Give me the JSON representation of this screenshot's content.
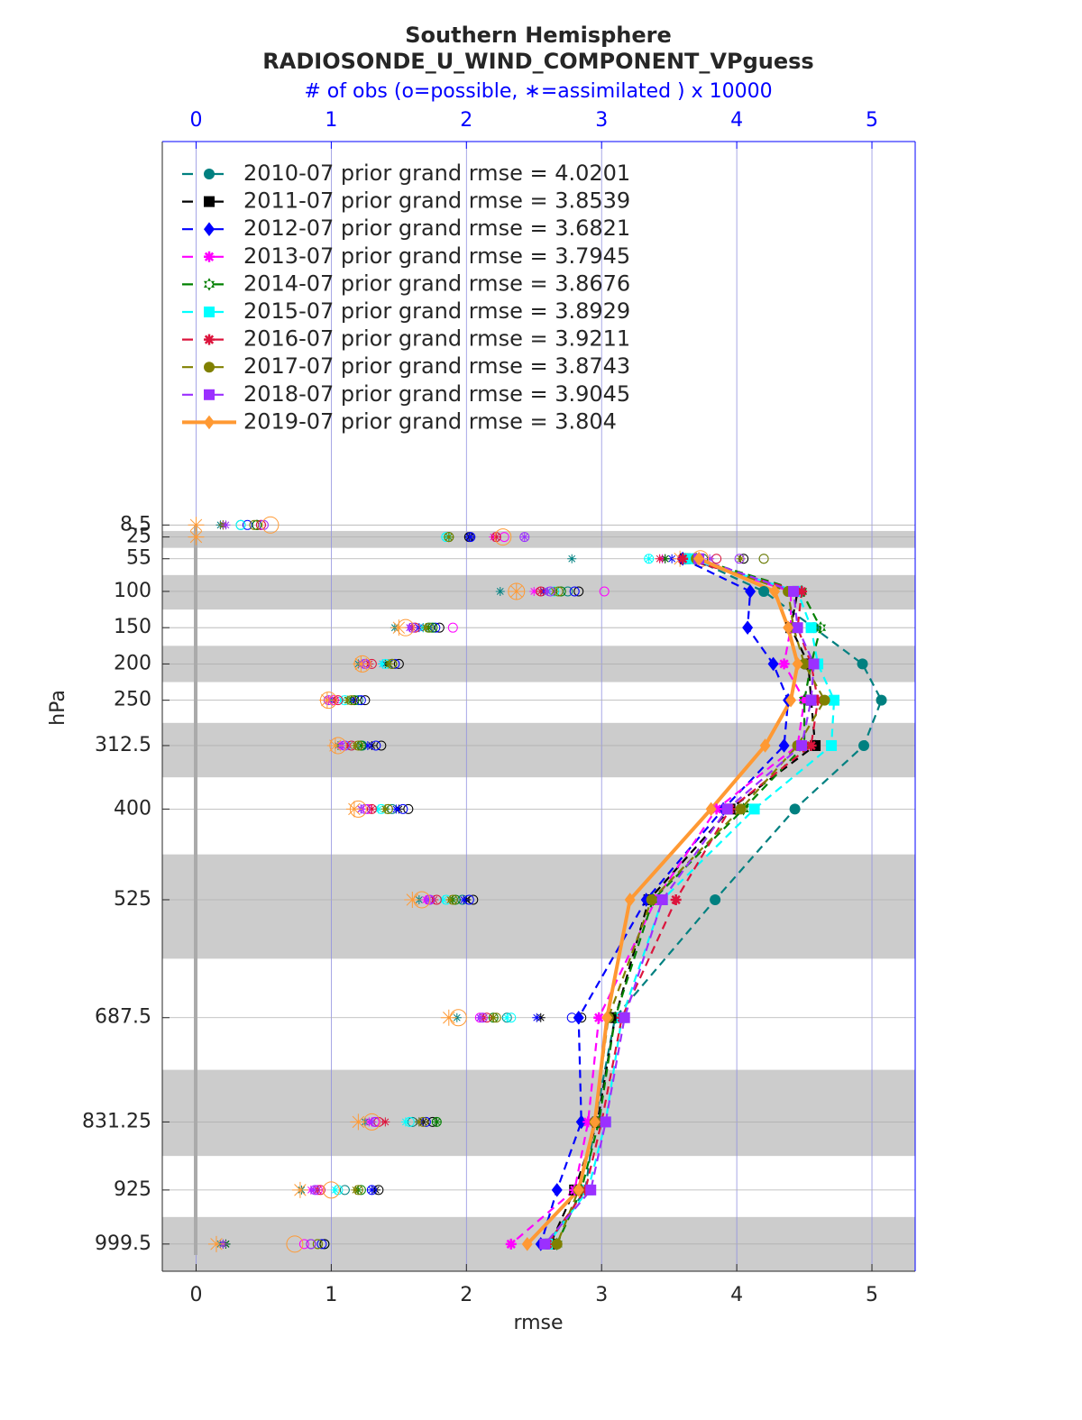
{
  "chart_data": {
    "type": "profile",
    "title": "Southern Hemisphere",
    "subtitle": "RADIOSONDE_U_WIND_COMPONENT_VPguess",
    "x2label": "# of obs (o=possible, ∗=assimilated ) x 10000",
    "xlabel": "rmse",
    "ylabel": "hPa",
    "xlim": [
      -0.25,
      5.32
    ],
    "xticks": [
      0,
      1,
      2,
      3,
      4,
      5
    ],
    "x2lim": [
      -0.25,
      5.32
    ],
    "x2ticks": [
      0,
      1,
      2,
      3,
      4,
      5
    ],
    "ylim": [
      -520,
      1037
    ],
    "y_reversed": true,
    "y": [
      8.5,
      25,
      55,
      100,
      150,
      200,
      250,
      312.5,
      400,
      525,
      687.5,
      831.25,
      925,
      999.5
    ],
    "yticks": [
      8.5,
      25,
      55,
      100,
      150,
      200,
      250,
      312.5,
      400,
      525,
      687.5,
      831.25,
      925,
      999.5
    ],
    "grid": true,
    "legend": "upper left",
    "series": [
      {
        "name": "2010-07 prior grand rmse = 4.0201",
        "color": "#008080",
        "marker": "circle",
        "dashed": true,
        "values": [
          null,
          null,
          3.68,
          4.2,
          4.57,
          4.93,
          5.07,
          4.94,
          4.43,
          3.84,
          3.1,
          2.95,
          2.88,
          2.6
        ],
        "obs_possible": [
          0.33,
          1.87,
          4.2,
          2.75,
          1.73,
          1.45,
          1.2,
          1.23,
          1.45,
          1.97,
          2.3,
          1.6,
          1.1,
          0.95
        ],
        "obs_assimilated": [
          0.18,
          1.87,
          2.78,
          2.25,
          1.47,
          1.2,
          1.0,
          1.05,
          1.22,
          1.65,
          1.93,
          1.25,
          0.78,
          0.18
        ]
      },
      {
        "name": "2011-07 prior grand rmse = 3.8539",
        "color": "#000000",
        "marker": "square",
        "dashed": true,
        "values": [
          null,
          null,
          3.62,
          4.45,
          4.4,
          4.53,
          4.55,
          4.58,
          3.95,
          3.35,
          3.1,
          2.97,
          2.8,
          2.62
        ],
        "obs_possible": [
          0.45,
          2.02,
          4.05,
          2.83,
          1.8,
          1.5,
          1.25,
          1.37,
          1.57,
          2.05,
          2.85,
          1.75,
          1.35,
          0.95
        ],
        "obs_assimilated": [
          0.2,
          2.02,
          3.47,
          2.6,
          1.68,
          1.4,
          1.18,
          1.3,
          1.5,
          2.0,
          2.55,
          1.68,
          1.33,
          0.22
        ]
      },
      {
        "name": "2012-07 prior grand rmse = 3.6821",
        "color": "#0000ff",
        "marker": "diamond",
        "dashed": true,
        "values": [
          null,
          null,
          3.6,
          4.1,
          4.08,
          4.27,
          4.38,
          4.35,
          3.9,
          3.33,
          2.83,
          2.85,
          2.67,
          2.55
        ],
        "obs_possible": [
          0.38,
          2.03,
          3.65,
          2.8,
          1.77,
          1.47,
          1.22,
          1.33,
          1.53,
          2.02,
          2.78,
          1.7,
          1.3,
          0.93
        ],
        "obs_assimilated": [
          0.2,
          2.03,
          3.52,
          2.57,
          1.65,
          1.38,
          1.15,
          1.27,
          1.48,
          1.98,
          2.52,
          1.65,
          1.3,
          0.22
        ]
      },
      {
        "name": "2013-07 prior grand rmse = 3.7945",
        "color": "#ff00ff",
        "marker": "asterisk",
        "dashed": true,
        "values": [
          null,
          null,
          3.65,
          4.4,
          4.4,
          4.35,
          4.5,
          4.45,
          3.85,
          3.4,
          2.98,
          2.9,
          2.8,
          2.33
        ],
        "obs_possible": [
          0.48,
          2.28,
          3.6,
          3.02,
          1.9,
          1.25,
          1.02,
          1.1,
          1.27,
          1.72,
          2.1,
          1.32,
          0.9,
          0.8
        ],
        "obs_assimilated": [
          0.2,
          2.2,
          3.45,
          2.5,
          1.58,
          1.23,
          0.98,
          1.07,
          1.22,
          1.7,
          2.1,
          1.28,
          0.85,
          0.2
        ]
      },
      {
        "name": "2014-07 prior grand rmse = 3.8676",
        "color": "#008000",
        "marker": "hexagram",
        "dashed": true,
        "values": [
          null,
          null,
          3.7,
          4.48,
          4.62,
          4.55,
          4.5,
          4.5,
          4.05,
          3.38,
          3.1,
          2.98,
          2.85,
          2.67
        ],
        "obs_possible": [
          0.45,
          1.87,
          3.75,
          2.7,
          1.75,
          1.45,
          1.17,
          1.22,
          1.42,
          1.92,
          2.2,
          1.78,
          1.22,
          0.9
        ],
        "obs_assimilated": [
          0.2,
          1.87,
          3.47,
          2.65,
          1.72,
          1.42,
          1.13,
          1.22,
          1.4,
          1.9,
          2.2,
          1.78,
          1.2,
          0.22
        ]
      },
      {
        "name": "2015-07 prior grand rmse = 3.8929",
        "color": "#00ffff",
        "marker": "square",
        "dashed": true,
        "values": [
          null,
          null,
          3.65,
          4.45,
          4.55,
          4.6,
          4.72,
          4.7,
          4.13,
          3.45,
          3.15,
          3.03,
          2.9,
          2.6
        ],
        "obs_possible": [
          0.33,
          1.85,
          3.35,
          2.65,
          1.72,
          1.4,
          1.1,
          1.15,
          1.37,
          1.85,
          2.33,
          1.58,
          1.05,
          0.85
        ],
        "obs_assimilated": [
          0.2,
          1.85,
          3.35,
          2.6,
          1.68,
          1.38,
          1.08,
          1.12,
          1.35,
          1.83,
          2.3,
          1.55,
          1.03,
          0.2
        ]
      },
      {
        "name": "2016-07 prior grand rmse = 3.9211",
        "color": "#dc143c",
        "marker": "asterisk",
        "dashed": true,
        "values": [
          null,
          null,
          3.6,
          4.48,
          4.45,
          4.55,
          4.6,
          4.55,
          3.95,
          3.55,
          3.15,
          3.0,
          2.88,
          2.6
        ],
        "obs_possible": [
          0.48,
          2.22,
          3.85,
          2.55,
          1.62,
          1.3,
          1.05,
          1.15,
          1.3,
          1.78,
          2.15,
          1.35,
          0.92,
          0.85
        ],
        "obs_assimilated": [
          0.2,
          2.22,
          3.43,
          2.55,
          1.6,
          1.28,
          1.03,
          1.13,
          1.3,
          1.76,
          2.13,
          1.4,
          0.9,
          0.2
        ]
      },
      {
        "name": "2017-07 prior grand rmse = 3.8743",
        "color": "#808000",
        "marker": "circle",
        "dashed": true,
        "values": [
          null,
          null,
          3.7,
          4.38,
          4.42,
          4.5,
          4.65,
          4.45,
          4.03,
          3.37,
          3.05,
          2.95,
          2.83,
          2.67
        ],
        "obs_possible": [
          0.43,
          1.87,
          4.2,
          2.68,
          1.72,
          1.45,
          1.15,
          1.2,
          1.42,
          1.9,
          2.22,
          1.68,
          1.2,
          0.9
        ],
        "obs_assimilated": [
          0.2,
          1.87,
          4.03,
          2.65,
          1.7,
          1.43,
          1.12,
          1.18,
          1.4,
          1.88,
          2.2,
          1.65,
          1.18,
          0.2
        ]
      },
      {
        "name": "2018-07 prior grand rmse = 3.9045",
        "color": "#9b30ff",
        "marker": "square",
        "dashed": true,
        "values": [
          null,
          null,
          3.72,
          4.42,
          4.45,
          4.57,
          4.55,
          4.48,
          3.93,
          3.45,
          3.17,
          3.03,
          2.92,
          2.58
        ],
        "obs_possible": [
          0.5,
          2.43,
          4.02,
          2.62,
          1.6,
          1.25,
          0.98,
          1.1,
          1.25,
          1.73,
          2.12,
          1.33,
          0.88,
          0.85
        ],
        "obs_assimilated": [
          0.22,
          2.43,
          3.8,
          2.6,
          1.58,
          1.23,
          0.97,
          1.08,
          1.22,
          1.72,
          2.1,
          1.3,
          0.87,
          0.2
        ]
      },
      {
        "name": "2019-07 prior grand rmse = 3.804",
        "color": "#ff9933",
        "marker": "diamond",
        "dashed": false,
        "values": [
          null,
          null,
          3.72,
          4.28,
          4.38,
          4.45,
          4.4,
          4.21,
          3.81,
          3.21,
          3.04,
          2.95,
          2.83,
          2.45
        ],
        "obs_possible": [
          0.55,
          2.27,
          3.73,
          2.37,
          1.55,
          1.23,
          0.98,
          1.05,
          1.2,
          1.67,
          1.94,
          1.3,
          1.0,
          0.73
        ],
        "obs_assimilated": [
          0.0,
          0.0,
          3.58,
          2.37,
          1.5,
          1.22,
          0.97,
          1.03,
          1.17,
          1.6,
          1.87,
          1.2,
          0.77,
          0.15
        ]
      }
    ]
  }
}
